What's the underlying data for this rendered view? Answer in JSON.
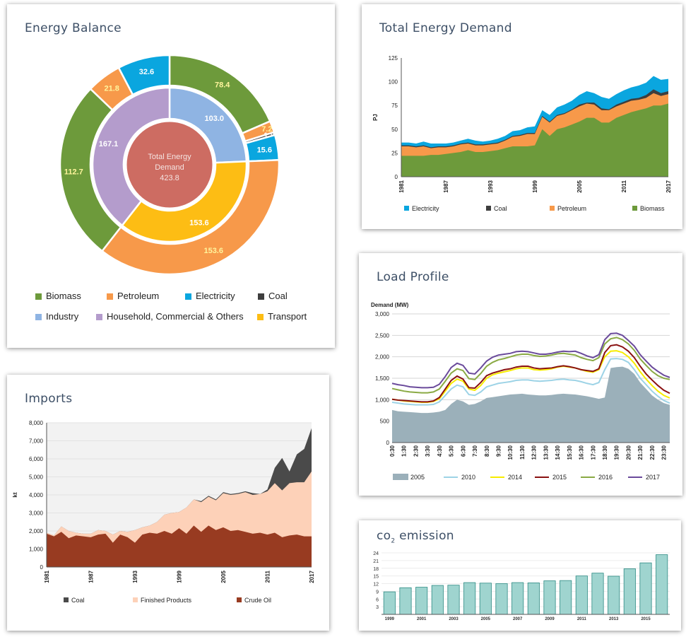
{
  "colors": {
    "biomass": "#6d9a3b",
    "petroleum": "#f7994a",
    "electricity": "#0aa6df",
    "coal": "#3e3e3e",
    "industry": "#8fb4e3",
    "household": "#b49ccc",
    "transport": "#fdbd14",
    "center": "#cd6c62",
    "imp_coal": "#4a4a4a",
    "imp_finished": "#fdd1b8",
    "imp_crude": "#983b21",
    "lp_2005": "#9bb0ba",
    "lp_2010": "#9dd3e6",
    "lp_2014": "#f7ec00",
    "lp_2015": "#8a1111",
    "lp_2016": "#8aaa44",
    "lp_2017": "#6a4a9b",
    "co2_bar": "#9fd4cf",
    "co2_bar_edge": "#2f8c85"
  },
  "cards": {
    "balance_title": "Energy Balance",
    "demand_title": "Total Energy Demand",
    "imports_title": "Imports",
    "load_title": "Load Profile",
    "co2_title_main": "co",
    "co2_title_sub": "2",
    "co2_title_rest": " emission"
  },
  "donut": {
    "center_line1": "Total Energy",
    "center_line2": "Demand",
    "center_value": "423.8",
    "outer": [
      {
        "key": "biomass",
        "value": 78.4,
        "label": "78.4"
      },
      {
        "key": "petroleum",
        "value": 7.2,
        "label": "7.2"
      },
      {
        "key": "coal",
        "value": 1.8,
        "label": "1.8"
      },
      {
        "key": "electricity",
        "value": 15.6,
        "label": "15.6"
      },
      {
        "key": "petroleum",
        "value": 153.6,
        "label": "153.6"
      },
      {
        "key": "biomass",
        "value": 112.7,
        "label": "112.7"
      },
      {
        "key": "petroleum",
        "value": 21.8,
        "label": "21.8"
      },
      {
        "key": "electricity",
        "value": 32.6,
        "label": "32.6"
      }
    ],
    "inner": [
      {
        "key": "industry",
        "value": 103.0,
        "label": "103.0"
      },
      {
        "key": "transport",
        "value": 153.6,
        "label": "153.6"
      },
      {
        "key": "household",
        "value": 167.1,
        "label": "167.1"
      }
    ],
    "legend": [
      {
        "key": "biomass",
        "label": "Biomass"
      },
      {
        "key": "petroleum",
        "label": "Petroleum"
      },
      {
        "key": "electricity",
        "label": "Electricity"
      },
      {
        "key": "coal",
        "label": "Coal"
      },
      {
        "key": "industry",
        "label": "Industry"
      },
      {
        "key": "household",
        "label": "Household, Commercial & Others"
      },
      {
        "key": "transport",
        "label": "Transport"
      }
    ]
  },
  "chart_data": [
    {
      "id": "total_energy_demand",
      "type": "area",
      "ylabel": "PJ",
      "ylim": [
        0,
        125
      ],
      "yticks": [
        0,
        25,
        50,
        75,
        100,
        125
      ],
      "xticks": [
        "1981",
        "1987",
        "1993",
        "1999",
        "2005",
        "2011",
        "2017"
      ],
      "x": [
        1981,
        1982,
        1983,
        1984,
        1985,
        1986,
        1987,
        1988,
        1989,
        1990,
        1991,
        1992,
        1993,
        1994,
        1995,
        1996,
        1997,
        1998,
        1999,
        2000,
        2001,
        2002,
        2003,
        2004,
        2005,
        2006,
        2007,
        2008,
        2009,
        2010,
        2011,
        2012,
        2013,
        2014,
        2015,
        2016,
        2017
      ],
      "stacked_totals": {
        "biomass": [
          22,
          22,
          22,
          22,
          23,
          23,
          24,
          25,
          26,
          28,
          26,
          26,
          27,
          28,
          30,
          32,
          32,
          32,
          33,
          50,
          43,
          50,
          52,
          55,
          58,
          62,
          62,
          57,
          57,
          62,
          65,
          68,
          70,
          72,
          75,
          75,
          77
        ],
        "petroleum": [
          32,
          32,
          31,
          32,
          30,
          31,
          31,
          32,
          34,
          35,
          33,
          33,
          34,
          35,
          38,
          42,
          43,
          45,
          45,
          63,
          57,
          64,
          66,
          70,
          74,
          77,
          76,
          70,
          70,
          74,
          77,
          80,
          81,
          83,
          88,
          85,
          87
        ],
        "coal": [
          33,
          33,
          32,
          33,
          31,
          32,
          32,
          33,
          35,
          36,
          34,
          34,
          35,
          36,
          39,
          43,
          44,
          46,
          46,
          64,
          58,
          65,
          67,
          71,
          76,
          78,
          78,
          72,
          71,
          76,
          79,
          82,
          83,
          86,
          92,
          88,
          90
        ],
        "electricity": [
          36,
          36,
          35,
          37,
          35,
          35,
          35,
          36,
          38,
          40,
          38,
          37,
          38,
          40,
          43,
          48,
          49,
          52,
          53,
          70,
          65,
          73,
          76,
          80,
          86,
          90,
          88,
          84,
          82,
          87,
          91,
          94,
          96,
          99,
          106,
          102,
          103
        ]
      },
      "series": [
        {
          "name": "Electricity",
          "key": "electricity"
        },
        {
          "name": "Coal",
          "key": "coal"
        },
        {
          "name": "Petroleum",
          "key": "petroleum"
        },
        {
          "name": "Biomass",
          "key": "biomass"
        }
      ],
      "legend_position": "bottom"
    },
    {
      "id": "imports",
      "type": "area",
      "ylabel": "kt",
      "ylim": [
        0,
        8000
      ],
      "yticks": [
        0,
        1000,
        2000,
        3000,
        4000,
        5000,
        6000,
        7000,
        8000
      ],
      "ytick_labels": [
        "0",
        "1,000",
        "2,000",
        "3,000",
        "4,000",
        "5,000",
        "6,000",
        "7,000",
        "8,000"
      ],
      "xticks": [
        "1981",
        "1987",
        "1993",
        "1999",
        "2005",
        "2011",
        "2017"
      ],
      "x": [
        1981,
        1982,
        1983,
        1984,
        1985,
        1986,
        1987,
        1988,
        1989,
        1990,
        1991,
        1992,
        1993,
        1994,
        1995,
        1996,
        1997,
        1998,
        1999,
        2000,
        2001,
        2002,
        2003,
        2004,
        2005,
        2006,
        2007,
        2008,
        2009,
        2010,
        2011,
        2012,
        2013,
        2014,
        2015,
        2016,
        2017
      ],
      "stacked_totals": {
        "crude": [
          1850,
          1700,
          1950,
          1600,
          1750,
          1700,
          1650,
          1800,
          1850,
          1350,
          1800,
          1650,
          1350,
          1800,
          1900,
          1850,
          2000,
          1850,
          2150,
          1850,
          2300,
          1950,
          2300,
          2050,
          2200,
          2000,
          2050,
          1950,
          1850,
          1900,
          1800,
          1900,
          1650,
          1750,
          1800,
          1700,
          1700
        ],
        "finished": [
          1900,
          1750,
          2250,
          2000,
          1900,
          1850,
          1850,
          2050,
          2000,
          1800,
          2000,
          1950,
          2050,
          2200,
          2300,
          2500,
          2900,
          3000,
          3050,
          3300,
          3750,
          3600,
          3900,
          3700,
          4100,
          4000,
          4050,
          4150,
          4000,
          4050,
          4200,
          4650,
          4250,
          4650,
          4700,
          4700,
          5300
        ],
        "coal": [
          1900,
          1750,
          2250,
          2000,
          1900,
          1850,
          1850,
          2050,
          2000,
          1800,
          2000,
          1950,
          2050,
          2200,
          2300,
          2500,
          2900,
          3000,
          3050,
          3300,
          3750,
          3650,
          3950,
          3750,
          4150,
          4050,
          4100,
          4200,
          4100,
          4050,
          4300,
          5500,
          6050,
          5300,
          6250,
          6550,
          7700
        ]
      },
      "series": [
        {
          "name": "Coal",
          "key": "coal"
        },
        {
          "name": "Finished Products",
          "key": "finished"
        },
        {
          "name": "Crude Oil",
          "key": "crude"
        }
      ],
      "legend_position": "bottom"
    },
    {
      "id": "load_profile",
      "type": "line",
      "ylabel": "Demand (MW)",
      "ylim": [
        0,
        3000
      ],
      "yticks": [
        0,
        500,
        1000,
        1500,
        2000,
        2500,
        3000
      ],
      "ytick_labels": [
        "0",
        "500",
        "1,000",
        "1,500",
        "2,000",
        "2,500",
        "3,000"
      ],
      "x": [
        "0:30",
        "1:00",
        "1:30",
        "2:00",
        "2:30",
        "3:00",
        "3:30",
        "4:00",
        "4:30",
        "5:00",
        "5:30",
        "6:00",
        "6:30",
        "7:00",
        "7:30",
        "8:00",
        "8:30",
        "9:00",
        "9:30",
        "10:00",
        "10:30",
        "11:00",
        "11:30",
        "12:00",
        "12:30",
        "13:00",
        "13:30",
        "14:00",
        "14:30",
        "15:00",
        "15:30",
        "16:00",
        "16:30",
        "17:00",
        "17:30",
        "18:00",
        "18:30",
        "19:00",
        "19:30",
        "20:00",
        "20:30",
        "21:00",
        "21:30",
        "22:00",
        "22:30",
        "23:00",
        "23:30",
        "0:00"
      ],
      "xtick_labels": [
        "0:30",
        "1:30",
        "2:30",
        "3:30",
        "4:30",
        "5:30",
        "6:30",
        "7:30",
        "8:30",
        "9:30",
        "10:30",
        "11:30",
        "12:30",
        "13:30",
        "14:30",
        "15:30",
        "16:30",
        "17:30",
        "18:30",
        "19:30",
        "20:30",
        "21:30",
        "22:30",
        "23:30"
      ],
      "series": [
        {
          "name": "2005",
          "key": "lp_2005",
          "style": "area",
          "values": [
            760,
            730,
            720,
            710,
            700,
            690,
            690,
            700,
            720,
            760,
            900,
            1000,
            960,
            880,
            900,
            960,
            1040,
            1060,
            1080,
            1100,
            1120,
            1130,
            1140,
            1120,
            1110,
            1100,
            1100,
            1110,
            1130,
            1140,
            1130,
            1120,
            1100,
            1080,
            1050,
            1020,
            1050,
            1740,
            1760,
            1770,
            1720,
            1600,
            1400,
            1250,
            1100,
            1000,
            920,
            880
          ]
        },
        {
          "name": "2010",
          "key": "lp_2010",
          "style": "line",
          "values": [
            940,
            920,
            900,
            890,
            880,
            880,
            880,
            890,
            950,
            1100,
            1250,
            1340,
            1300,
            1120,
            1100,
            1180,
            1300,
            1340,
            1380,
            1400,
            1420,
            1450,
            1460,
            1460,
            1440,
            1430,
            1440,
            1450,
            1470,
            1480,
            1460,
            1450,
            1420,
            1380,
            1350,
            1400,
            1700,
            1950,
            1960,
            1940,
            1870,
            1700,
            1500,
            1350,
            1200,
            1080,
            980,
            920
          ]
        },
        {
          "name": "2014",
          "key": "lp_2014",
          "style": "line",
          "values": [
            1010,
            990,
            970,
            960,
            950,
            940,
            940,
            960,
            1020,
            1200,
            1380,
            1480,
            1430,
            1250,
            1220,
            1330,
            1500,
            1580,
            1620,
            1650,
            1680,
            1720,
            1740,
            1740,
            1700,
            1690,
            1700,
            1720,
            1760,
            1780,
            1760,
            1740,
            1700,
            1660,
            1640,
            1700,
            2000,
            2130,
            2140,
            2100,
            2000,
            1850,
            1650,
            1480,
            1330,
            1200,
            1100,
            1040
          ]
        },
        {
          "name": "2015",
          "key": "lp_2015",
          "style": "line",
          "values": [
            1010,
            990,
            980,
            970,
            960,
            950,
            950,
            970,
            1050,
            1250,
            1450,
            1550,
            1480,
            1280,
            1270,
            1400,
            1560,
            1620,
            1660,
            1700,
            1720,
            1760,
            1780,
            1780,
            1740,
            1720,
            1730,
            1740,
            1770,
            1790,
            1770,
            1740,
            1700,
            1680,
            1660,
            1720,
            2100,
            2260,
            2280,
            2230,
            2130,
            1980,
            1780,
            1600,
            1460,
            1330,
            1220,
            1150
          ]
        },
        {
          "name": "2016",
          "key": "lp_2016",
          "style": "line",
          "values": [
            1260,
            1230,
            1200,
            1180,
            1170,
            1160,
            1160,
            1180,
            1250,
            1430,
            1620,
            1720,
            1680,
            1490,
            1470,
            1610,
            1780,
            1870,
            1930,
            1960,
            2000,
            2040,
            2060,
            2060,
            2030,
            2010,
            2020,
            2040,
            2070,
            2080,
            2060,
            2040,
            1980,
            1940,
            1910,
            1980,
            2300,
            2420,
            2450,
            2400,
            2300,
            2150,
            1950,
            1800,
            1660,
            1560,
            1500,
            1470
          ]
        },
        {
          "name": "2017",
          "key": "lp_2017",
          "style": "line",
          "values": [
            1380,
            1350,
            1330,
            1300,
            1290,
            1280,
            1280,
            1290,
            1360,
            1540,
            1750,
            1850,
            1800,
            1620,
            1600,
            1740,
            1900,
            1990,
            2040,
            2060,
            2080,
            2120,
            2130,
            2120,
            2090,
            2060,
            2060,
            2080,
            2110,
            2130,
            2120,
            2130,
            2080,
            2020,
            1980,
            2050,
            2400,
            2540,
            2550,
            2500,
            2380,
            2250,
            2050,
            1900,
            1760,
            1660,
            1570,
            1520
          ]
        }
      ],
      "legend_position": "bottom"
    },
    {
      "id": "co2_emission",
      "type": "bar",
      "ylim": [
        0,
        24
      ],
      "yticks": [
        3,
        6,
        9,
        12,
        15,
        18,
        21,
        24
      ],
      "x": [
        1999,
        2000,
        2001,
        2002,
        2003,
        2004,
        2005,
        2006,
        2007,
        2008,
        2009,
        2010,
        2011,
        2012,
        2013,
        2014,
        2015,
        2016
      ],
      "xtick_labels": [
        "1999",
        "2001",
        "2003",
        "2005",
        "2007",
        "2009",
        "2011",
        "2013",
        "2015"
      ],
      "values": [
        8.8,
        10.4,
        10.6,
        11.3,
        11.4,
        12.4,
        12.2,
        12.0,
        12.4,
        12.3,
        13.1,
        13.2,
        15.0,
        16.1,
        14.9,
        17.8,
        20.1,
        23.3
      ]
    }
  ]
}
